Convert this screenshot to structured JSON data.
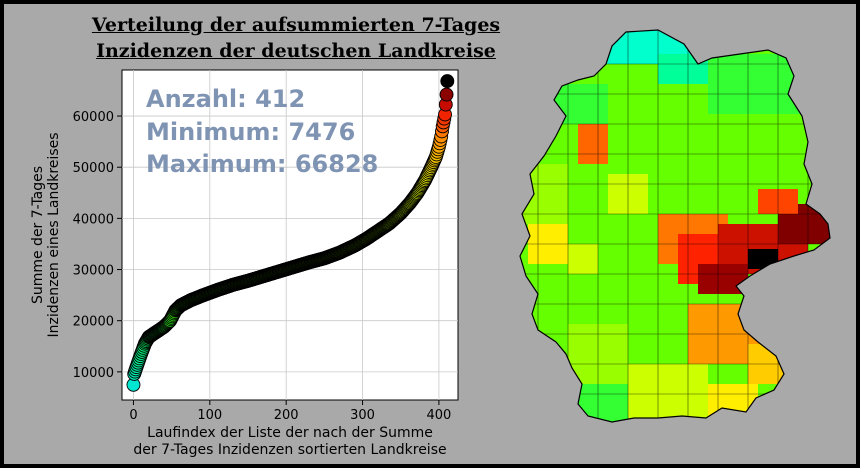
{
  "title": {
    "line1": "Verteilung der aufsummierten 7-Tages",
    "line2": "Inzidenzen der deutschen Landkreise"
  },
  "stats": {
    "count": "Anzahl: 412",
    "min": "Minimum: 7476",
    "max": "Maximum: 66828",
    "color": "#7f93b3"
  },
  "chart_data": {
    "type": "scatter",
    "title": "Verteilung der aufsummierten 7-Tages Inzidenzen der deutschen Landkreise",
    "xlabel_lines": [
      "Laufindex der Liste der nach der Summe",
      "der 7-Tages Inzidenzen sortierten Landkreise"
    ],
    "ylabel_lines": [
      "Summe der 7-Tages",
      "Inzidenzen eines Landkreises"
    ],
    "xlim": [
      -15,
      425
    ],
    "ylim": [
      4500,
      69000
    ],
    "xticks": [
      0,
      100,
      200,
      300,
      400
    ],
    "yticks": [
      10000,
      20000,
      30000,
      40000,
      50000,
      60000
    ],
    "grid": true,
    "colormap": "jet-like (cyan → green → yellow → red → black)",
    "curve": [
      [
        0,
        7476
      ],
      [
        1,
        9600
      ],
      [
        3,
        10500
      ],
      [
        6,
        11800
      ],
      [
        10,
        13500
      ],
      [
        15,
        15500
      ],
      [
        20,
        16800
      ],
      [
        30,
        17800
      ],
      [
        40,
        18800
      ],
      [
        48,
        20000
      ],
      [
        55,
        22000
      ],
      [
        62,
        23000
      ],
      [
        75,
        24000
      ],
      [
        90,
        24900
      ],
      [
        110,
        26000
      ],
      [
        130,
        27000
      ],
      [
        150,
        27800
      ],
      [
        170,
        28700
      ],
      [
        190,
        29600
      ],
      [
        210,
        30500
      ],
      [
        230,
        31400
      ],
      [
        250,
        32200
      ],
      [
        270,
        33300
      ],
      [
        290,
        34700
      ],
      [
        305,
        36000
      ],
      [
        320,
        37500
      ],
      [
        335,
        39000
      ],
      [
        350,
        41000
      ],
      [
        362,
        43000
      ],
      [
        372,
        45000
      ],
      [
        382,
        47500
      ],
      [
        390,
        50000
      ],
      [
        396,
        52000
      ],
      [
        400,
        54000
      ],
      [
        403,
        56000
      ],
      [
        405,
        58000
      ],
      [
        407,
        59500
      ],
      [
        408,
        60300
      ],
      [
        410,
        64200
      ],
      [
        411,
        66828
      ]
    ]
  },
  "map": {
    "description_colors": [
      "#00ffcc",
      "#33ff00",
      "#99ff00",
      "#ffff00",
      "#ff9900",
      "#ff3300",
      "#990000",
      "#000000"
    ]
  }
}
